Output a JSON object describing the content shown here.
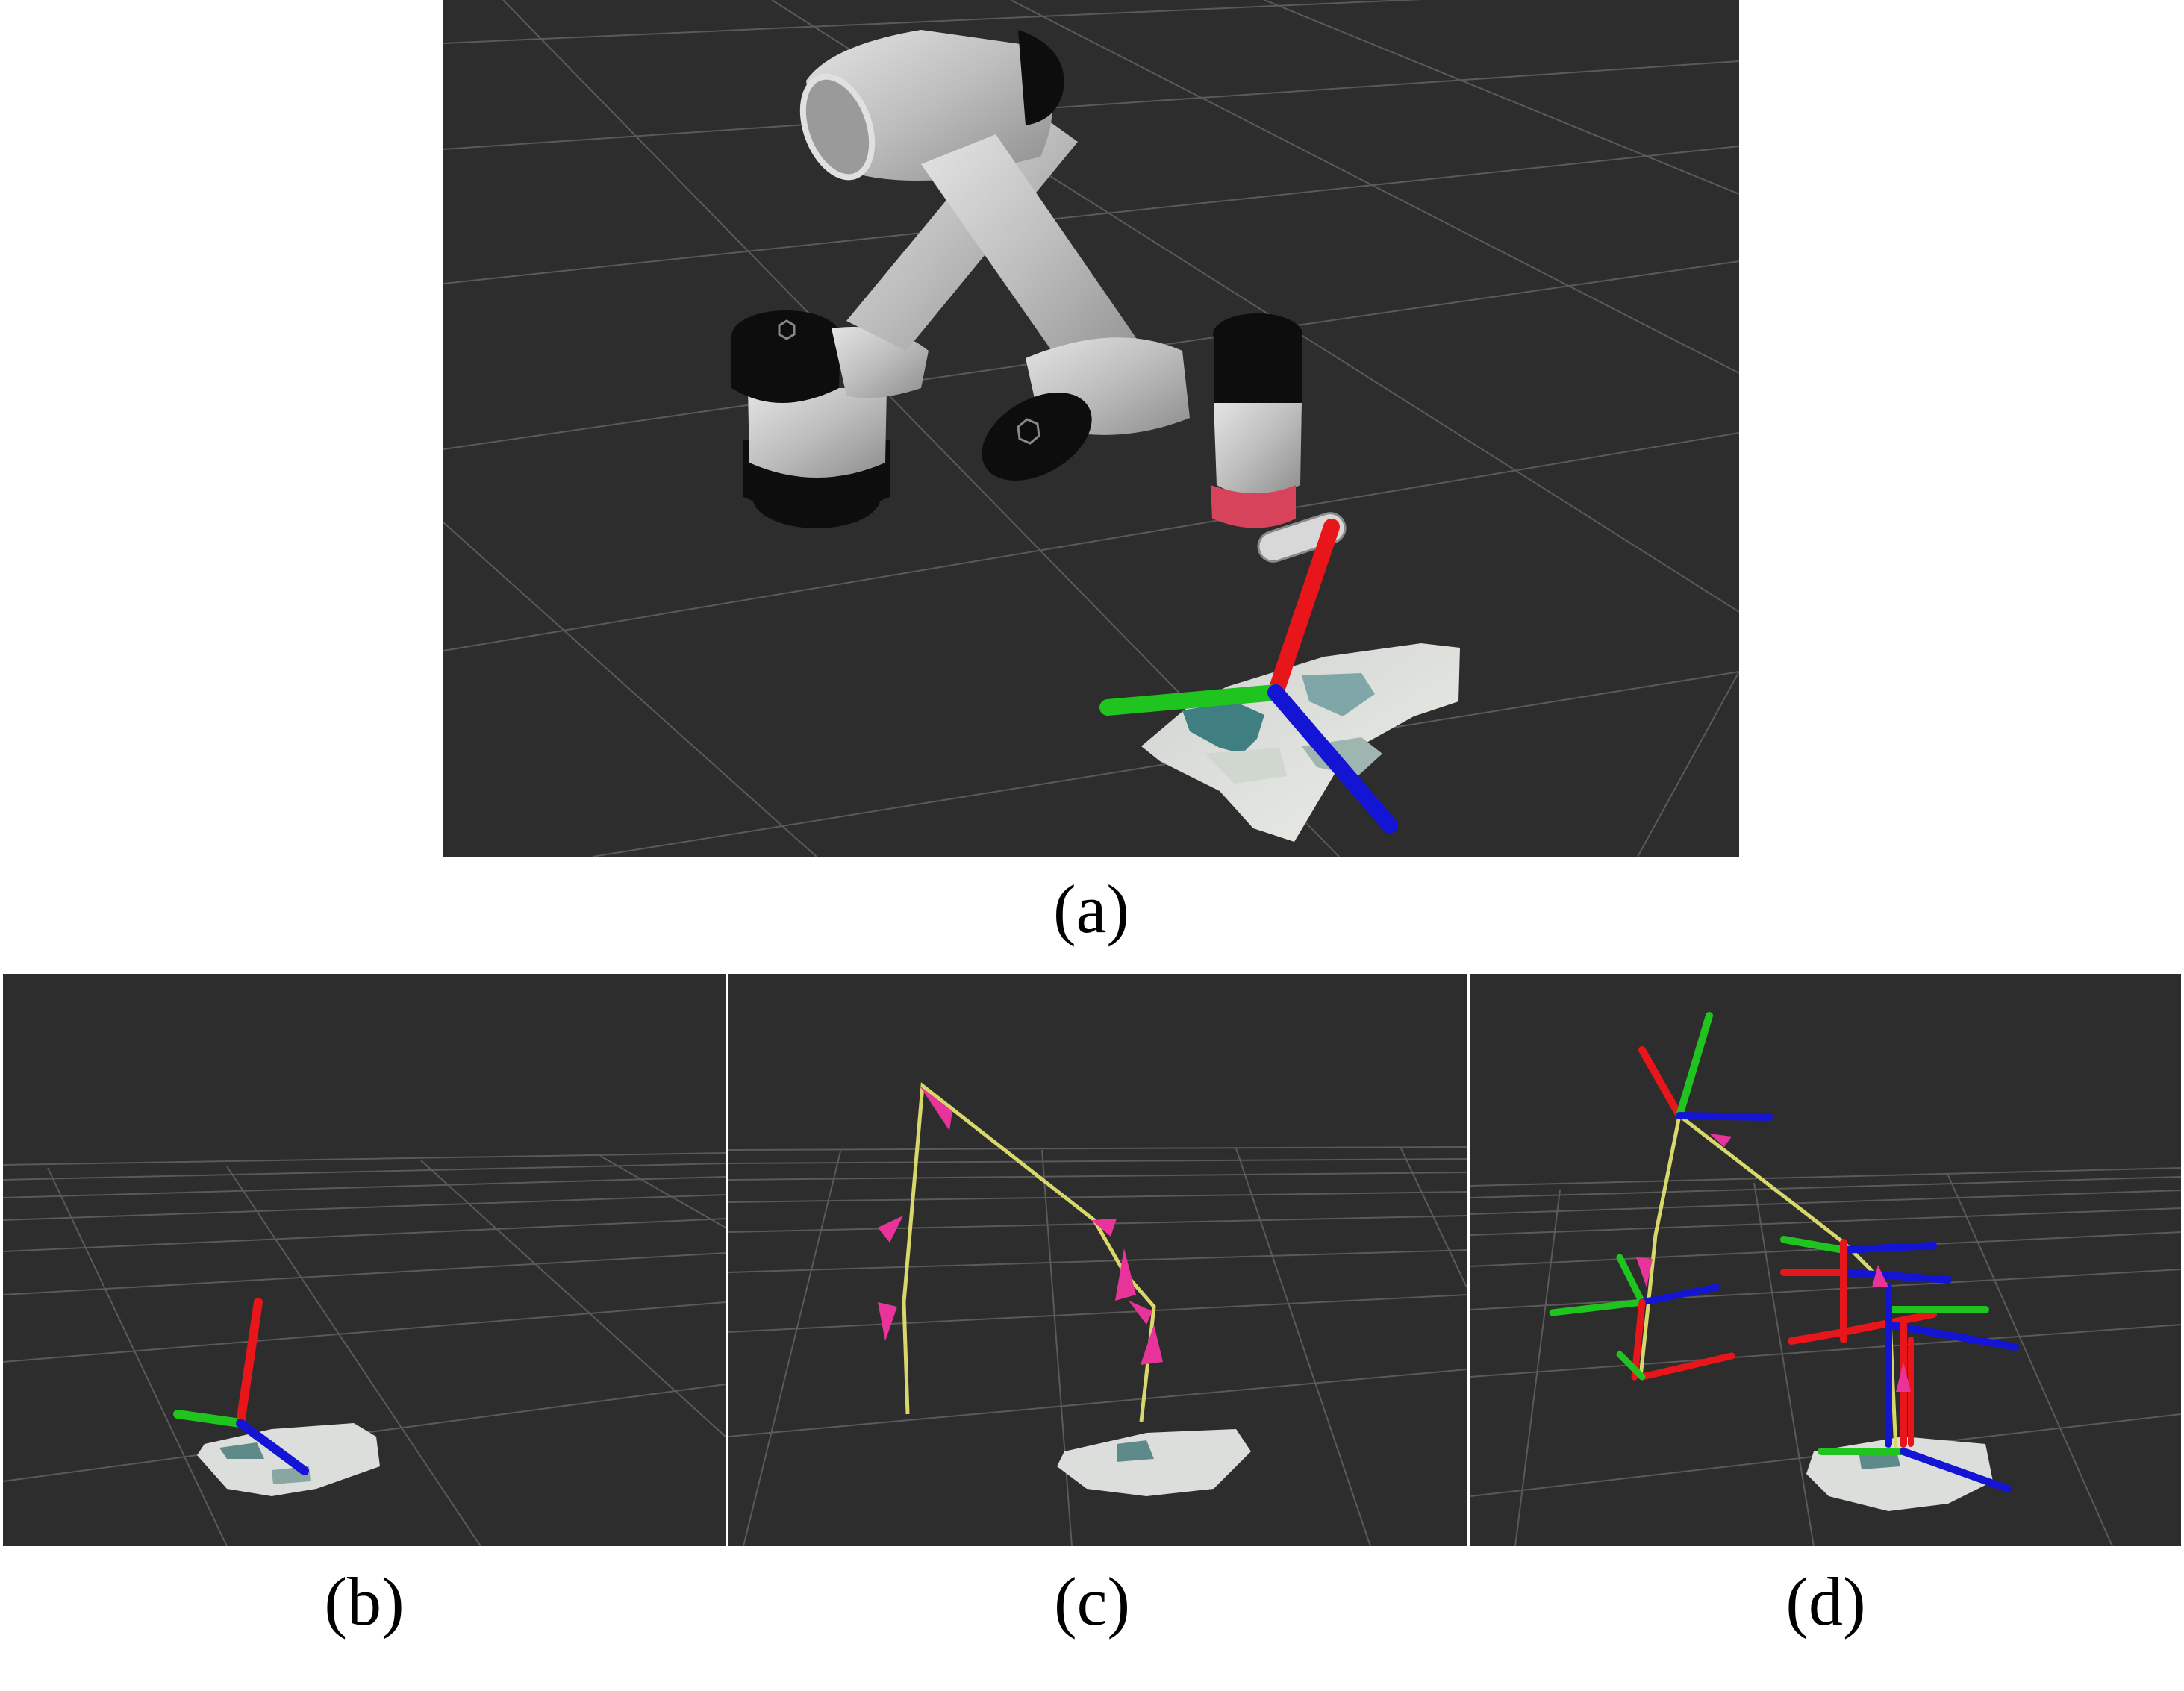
{
  "figure": {
    "panels": [
      {
        "id": "a",
        "caption": "(a)",
        "content": "robot-arm-with-target-pose"
      },
      {
        "id": "b",
        "caption": "(b)",
        "content": "target-pose-on-pointcloud"
      },
      {
        "id": "c",
        "caption": "(c)",
        "content": "waypoint-path-arrows"
      },
      {
        "id": "d",
        "caption": "(d)",
        "content": "multiple-pose-frames"
      }
    ]
  },
  "colors": {
    "background": "#2d2d2d",
    "grid": "#5a5a5a",
    "axis_x": "#e8161b",
    "axis_y": "#1fc41f",
    "axis_z": "#1414d4",
    "arrow": "#e8349a",
    "path_line": "#d8d86a",
    "robot_link": "#c8c8c8",
    "robot_joint": "#0d0d0d",
    "flange": "#d8435c"
  }
}
